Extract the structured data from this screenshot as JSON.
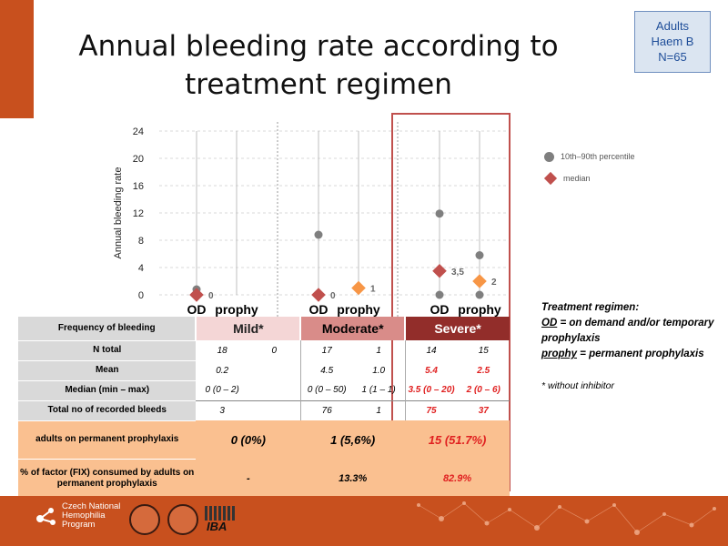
{
  "slide": {
    "title": "Annual bleeding rate according to treatment regimen",
    "group_box": {
      "line1": "Adults",
      "line2": "Haem B",
      "line3": "N=65"
    }
  },
  "legend": {
    "percentile": "10th–90th percentile",
    "median": "median"
  },
  "colors": {
    "percentile": "#7f7f7f",
    "median_od": "#c0504d",
    "median_prophy": "#f79646",
    "mild": "#f4d6d6",
    "moderate": "#d98c89",
    "severe": "#922d2a",
    "highlight": "#fac090",
    "frame": "#c0504d"
  },
  "chart_data": {
    "type": "scatter",
    "ylabel": "Annual bleeding rate",
    "yticks": [
      0,
      4,
      8,
      12,
      16,
      20,
      24
    ],
    "ylim": [
      0,
      24
    ],
    "categories": [
      "OD",
      "prophy",
      "OD",
      "prophy",
      "OD",
      "prophy"
    ],
    "groups": [
      "Mild*",
      "Moderate*",
      "Severe*"
    ],
    "series": [
      {
        "name": "10th–90th percentile",
        "marker": "circle",
        "points": [
          {
            "group": "Mild*",
            "category": "OD",
            "y": [
              0,
              0.8
            ]
          },
          {
            "group": "Moderate*",
            "category": "OD",
            "y": [
              0,
              8.8
            ]
          },
          {
            "group": "Severe*",
            "category": "OD",
            "y": [
              0,
              11.9
            ]
          },
          {
            "group": "Severe*",
            "category": "prophy",
            "y": [
              0,
              5.8
            ]
          }
        ]
      },
      {
        "name": "median",
        "marker": "diamond",
        "points": [
          {
            "group": "Mild*",
            "category": "OD",
            "y": 0,
            "label": "0"
          },
          {
            "group": "Moderate*",
            "category": "OD",
            "y": 0,
            "label": "0"
          },
          {
            "group": "Moderate*",
            "category": "prophy",
            "y": 1,
            "label": "1"
          },
          {
            "group": "Severe*",
            "category": "OD",
            "y": 3.5,
            "label": "3,5"
          },
          {
            "group": "Severe*",
            "category": "prophy",
            "y": 2,
            "label": "2"
          }
        ]
      }
    ]
  },
  "table": {
    "header_label": "Frequency of bleeding",
    "groups": [
      "Mild*",
      "Moderate*",
      "Severe*"
    ],
    "rows": {
      "n_total": {
        "label": "N total",
        "values": [
          "18",
          "0",
          "17",
          "1",
          "14",
          "15"
        ]
      },
      "mean": {
        "label": "Mean",
        "values": [
          "0.2",
          "",
          "4.5",
          "1.0",
          "5.4",
          "2.5"
        ]
      },
      "median": {
        "label": "Median (min – max)",
        "values": [
          "0 (0 – 2)",
          "",
          "0 (0 – 50)",
          "1 (1 – 1)",
          "3.5 (0 – 20)",
          "2 (0 – 6)"
        ]
      },
      "total_bleeds": {
        "label": "Total no of recorded bleeds",
        "values": [
          "3",
          "",
          "76",
          "1",
          "75",
          "37"
        ]
      },
      "permanent": {
        "label": "adults on permanent prophylaxis",
        "values": [
          "0 (0%)",
          "1 (5,6%)",
          "15 (51.7%)"
        ]
      },
      "factor": {
        "label": "% of factor (FIX) consumed by adults on permanent prophylaxis",
        "values": [
          "-",
          "13.3%",
          "82.9%"
        ]
      }
    }
  },
  "notes": {
    "heading": "Treatment regimen:",
    "od_abbr": "OD",
    "od_text": " = on demand and/or temporary prophylaxis",
    "prophy_abbr": "prophy",
    "prophy_text": " = permanent prophylaxis",
    "footnote": "* without inhibitor"
  },
  "footer": {
    "program_line1": "Czech National",
    "program_line2": "Hemophilia",
    "program_line3": "Program",
    "iba": "IBA"
  }
}
